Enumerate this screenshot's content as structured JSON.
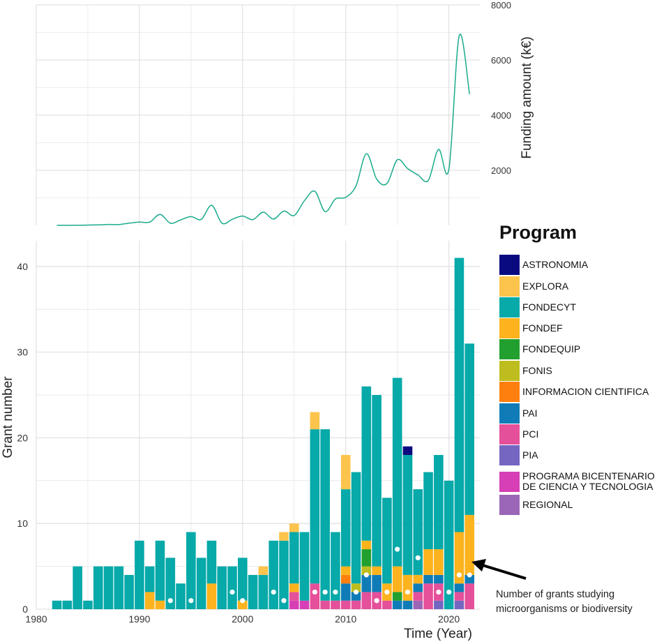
{
  "chart_data": [
    {
      "type": "line",
      "title": "",
      "ylabel": "Funding amount (k€)",
      "xlim": [
        1980,
        2023
      ],
      "ylim": [
        0,
        8000
      ],
      "y_ticks": [
        2000,
        4000,
        6000,
        8000
      ],
      "y_tick_labels": [
        "2000",
        "4000",
        "6000",
        "8000"
      ],
      "grid": true,
      "series": [
        {
          "name": "Funding amount",
          "color": "#1aaa8c",
          "x": [
            1982,
            1984,
            1986,
            1987,
            1988,
            1989,
            1990,
            1991,
            1992,
            1993,
            1994,
            1995,
            1996,
            1997,
            1998,
            1999,
            2000,
            2001,
            2002,
            2003,
            2004,
            2005,
            2006,
            2007,
            2008,
            2009,
            2010,
            2011,
            2012,
            2013,
            2014,
            2015,
            2016,
            2017,
            2018,
            2019,
            2020,
            2021,
            2022
          ],
          "y": [
            5,
            5,
            20,
            35,
            30,
            80,
            120,
            120,
            400,
            80,
            200,
            320,
            220,
            730,
            80,
            220,
            340,
            210,
            480,
            230,
            520,
            360,
            900,
            1240,
            500,
            960,
            1020,
            1440,
            2600,
            1680,
            1520,
            2380,
            2060,
            1830,
            1630,
            2760,
            2040,
            6880,
            4760
          ]
        }
      ]
    },
    {
      "type": "bar",
      "stacked": true,
      "title": "",
      "xlabel": "Time (Year)",
      "ylabel": "Grant number",
      "xlim": [
        1980,
        2023
      ],
      "ylim": [
        0,
        43
      ],
      "x_ticks": [
        1980,
        1990,
        2000,
        2010,
        2020
      ],
      "x_tick_labels": [
        "1980",
        "1990",
        "2000",
        "2010",
        "2020"
      ],
      "y_ticks": [
        0,
        10,
        20,
        30,
        40
      ],
      "y_tick_labels": [
        "0",
        "10",
        "20",
        "30",
        "40"
      ],
      "grid": true,
      "years": [
        1982,
        1983,
        1984,
        1985,
        1986,
        1987,
        1988,
        1989,
        1990,
        1991,
        1992,
        1993,
        1994,
        1995,
        1996,
        1997,
        1998,
        1999,
        2000,
        2001,
        2002,
        2003,
        2004,
        2005,
        2006,
        2007,
        2008,
        2009,
        2010,
        2011,
        2012,
        2013,
        2014,
        2015,
        2016,
        2017,
        2018,
        2019,
        2020,
        2021,
        2022
      ],
      "series": [
        {
          "name": "REGIONAL",
          "color": "#9b66b8",
          "values": [
            0,
            0,
            0,
            0,
            0,
            0,
            0,
            0,
            0,
            0,
            0,
            0,
            0,
            0,
            0,
            0,
            0,
            0,
            0,
            0,
            0,
            0,
            0,
            0,
            0,
            0,
            0,
            0,
            0,
            0,
            0,
            0,
            0,
            0,
            0,
            1,
            0,
            0,
            0,
            0,
            0
          ]
        },
        {
          "name": "PROGRAMA BICENTENARIO DE CIENCIA Y TECNOLOGIA",
          "color": "#d63fb5",
          "values": [
            0,
            0,
            0,
            0,
            0,
            0,
            0,
            0,
            0,
            0,
            0,
            0,
            0,
            0,
            0,
            0,
            0,
            0,
            0,
            0,
            0,
            0,
            0,
            1,
            1,
            0,
            0,
            0,
            0,
            0,
            0,
            0,
            0,
            0,
            0,
            0,
            0,
            0,
            0,
            0,
            0
          ]
        },
        {
          "name": "PIA",
          "color": "#7566c2",
          "values": [
            0,
            0,
            0,
            0,
            0,
            0,
            0,
            0,
            0,
            0,
            0,
            0,
            0,
            0,
            0,
            0,
            0,
            0,
            0,
            0,
            0,
            0,
            0,
            0,
            0,
            0,
            0,
            0,
            0,
            0,
            0,
            0,
            0,
            0,
            0,
            0,
            0,
            1,
            0,
            1,
            0
          ]
        },
        {
          "name": "PCI",
          "color": "#e5509a",
          "values": [
            0,
            0,
            0,
            0,
            0,
            0,
            0,
            0,
            0,
            0,
            0,
            0,
            0,
            0,
            0,
            0,
            0,
            0,
            0,
            0,
            0,
            0,
            0,
            1,
            0,
            3,
            1,
            1,
            1,
            1,
            2,
            2,
            1,
            0,
            0,
            1,
            3,
            2,
            0,
            1,
            3
          ]
        },
        {
          "name": "PAI",
          "color": "#0f7cb7",
          "values": [
            0,
            0,
            0,
            0,
            0,
            0,
            0,
            0,
            0,
            0,
            0,
            0,
            0,
            0,
            0,
            0,
            0,
            0,
            0,
            0,
            0,
            0,
            0,
            0,
            0,
            0,
            0,
            0,
            2,
            1,
            2,
            2,
            0,
            1,
            1,
            1,
            1,
            1,
            0,
            1,
            1
          ]
        },
        {
          "name": "INFORMACION CIENTIFICA",
          "color": "#ff7f0e",
          "values": [
            0,
            0,
            0,
            0,
            0,
            0,
            0,
            0,
            0,
            0,
            0,
            0,
            0,
            0,
            0,
            0,
            0,
            0,
            0,
            0,
            0,
            0,
            0,
            0,
            0,
            0,
            0,
            0,
            1,
            0,
            0,
            0,
            0,
            0,
            0,
            0,
            0,
            0,
            0,
            0,
            0
          ]
        },
        {
          "name": "FONIS",
          "color": "#bdbd1f",
          "values": [
            0,
            0,
            0,
            0,
            0,
            0,
            0,
            0,
            0,
            0,
            0,
            0,
            0,
            0,
            0,
            0,
            0,
            0,
            0,
            0,
            0,
            0,
            0,
            0,
            0,
            0,
            0,
            0,
            0,
            1,
            1,
            0,
            0,
            0,
            0,
            0,
            0,
            0,
            0,
            0,
            0
          ]
        },
        {
          "name": "FONDEQUIP",
          "color": "#22a02f",
          "values": [
            0,
            0,
            0,
            0,
            0,
            0,
            0,
            0,
            0,
            0,
            0,
            0,
            0,
            0,
            0,
            0,
            0,
            0,
            0,
            0,
            0,
            0,
            0,
            0,
            0,
            0,
            0,
            0,
            0,
            0,
            2,
            0,
            0,
            1,
            0,
            0,
            0,
            0,
            0,
            0,
            0
          ]
        },
        {
          "name": "FONDEF",
          "color": "#fdb31d",
          "values": [
            0,
            0,
            0,
            0,
            0,
            0,
            0,
            0,
            0,
            2,
            1,
            0,
            0,
            0,
            0,
            3,
            0,
            0,
            1,
            0,
            0,
            0,
            0,
            1,
            0,
            0,
            0,
            0,
            1,
            0,
            1,
            1,
            2,
            3,
            3,
            1,
            3,
            3,
            0,
            6,
            7
          ]
        },
        {
          "name": "FONDECYT",
          "color": "#07a9a9",
          "values": [
            1,
            1,
            5,
            1,
            5,
            5,
            5,
            4,
            8,
            3,
            7,
            6,
            3,
            9,
            6,
            5,
            5,
            5,
            5,
            4,
            4,
            8,
            8,
            6,
            8,
            18,
            20,
            8,
            9,
            13,
            18,
            20,
            10,
            22,
            14,
            10,
            9,
            11,
            15,
            32,
            20
          ]
        },
        {
          "name": "EXPLORA",
          "color": "#fcc44c",
          "values": [
            0,
            0,
            0,
            0,
            0,
            0,
            0,
            0,
            0,
            0,
            0,
            0,
            0,
            0,
            0,
            0,
            0,
            0,
            0,
            0,
            1,
            0,
            1,
            1,
            0,
            2,
            0,
            0,
            4,
            0,
            0,
            0,
            0,
            0,
            0,
            0,
            0,
            0,
            0,
            0,
            0
          ]
        },
        {
          "name": "ASTRONOMIA",
          "color": "#0a0a80",
          "values": [
            0,
            0,
            0,
            0,
            0,
            0,
            0,
            0,
            0,
            0,
            0,
            0,
            0,
            0,
            0,
            0,
            0,
            0,
            0,
            0,
            0,
            0,
            0,
            0,
            0,
            0,
            0,
            0,
            0,
            0,
            0,
            0,
            0,
            0,
            1,
            0,
            0,
            0,
            0,
            0,
            0
          ]
        }
      ],
      "microorganism_grant_counts": {
        "years": [
          1993,
          1995,
          1999,
          2000,
          2003,
          2004,
          2007,
          2008,
          2009,
          2011,
          2012,
          2013,
          2014,
          2015,
          2016,
          2017,
          2019,
          2020,
          2021,
          2022
        ],
        "values": [
          1,
          1,
          2,
          1,
          2,
          1,
          2,
          2,
          2,
          2,
          4,
          1,
          2,
          7,
          2,
          6,
          2,
          2,
          4,
          4
        ]
      },
      "annotation": "Number of grants studying\nmicroorganisms or biodiversity"
    }
  ],
  "legend": {
    "title": "Program",
    "items": [
      {
        "label": "ASTRONOMIA",
        "color": "#0a0a80"
      },
      {
        "label": "EXPLORA",
        "color": "#fcc44c"
      },
      {
        "label": "FONDECYT",
        "color": "#07a9a9"
      },
      {
        "label": "FONDEF",
        "color": "#fdb31d"
      },
      {
        "label": "FONDEQUIP",
        "color": "#22a02f"
      },
      {
        "label": "FONIS",
        "color": "#bdbd1f"
      },
      {
        "label": "INFORMACION CIENTIFICA",
        "color": "#ff7f0e"
      },
      {
        "label": "PAI",
        "color": "#0f7cb7"
      },
      {
        "label": "PCI",
        "color": "#e5509a"
      },
      {
        "label": "PIA",
        "color": "#7566c2"
      },
      {
        "label": "PROGRAMA BICENTENARIO\nDE CIENCIA Y TECNOLOGIA",
        "color": "#d63fb5"
      },
      {
        "label": "REGIONAL",
        "color": "#9b66b8"
      }
    ]
  }
}
